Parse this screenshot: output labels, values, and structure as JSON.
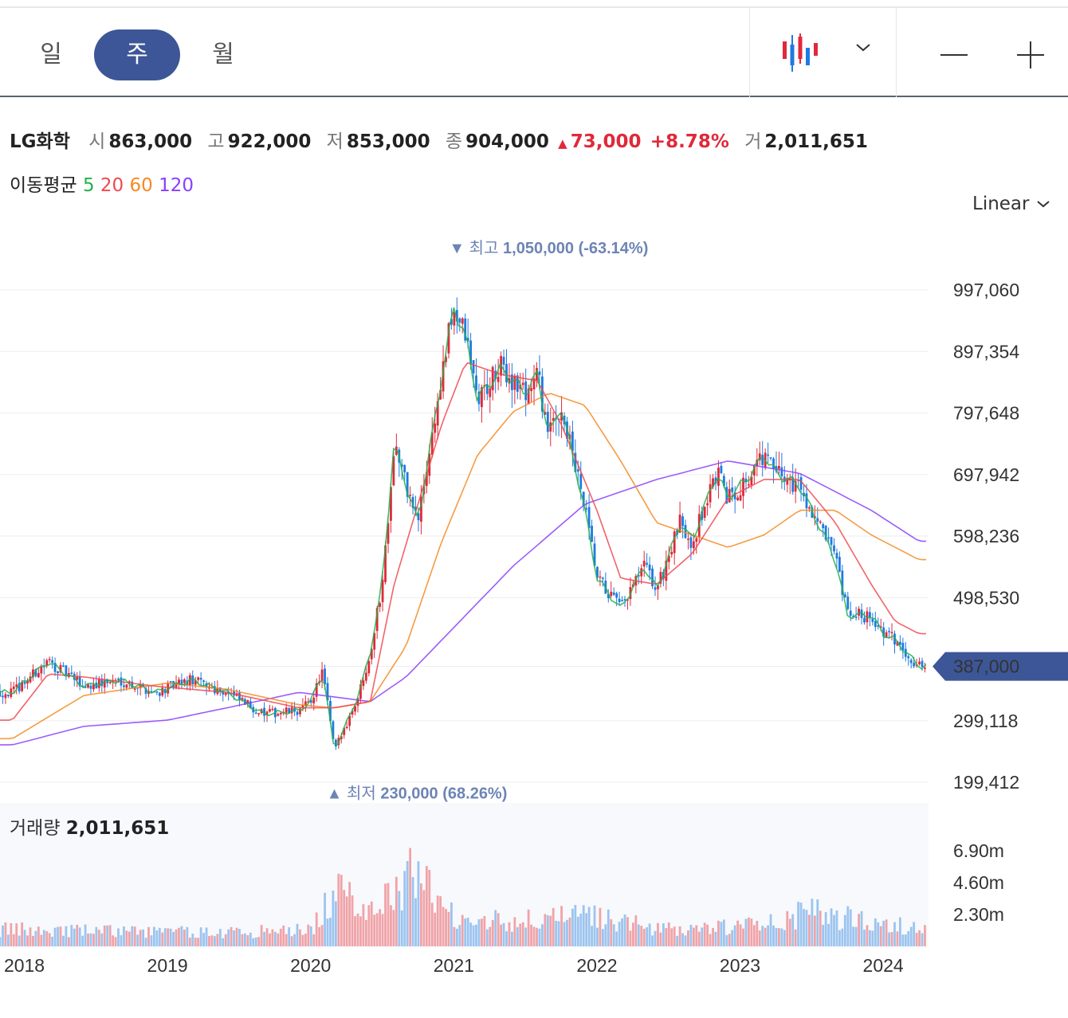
{
  "periods": [
    {
      "label": "일",
      "active": false
    },
    {
      "label": "주",
      "active": true
    },
    {
      "label": "월",
      "active": false
    }
  ],
  "toolbar": {
    "chart_type_icon": "candlestick-icon",
    "dropdown_icon": "chevron-down-icon",
    "zoom_out_icon": "minus-icon",
    "zoom_in_icon": "plus-icon"
  },
  "stock": {
    "name": "LG화학",
    "open_label": "시",
    "open": "863,000",
    "high_label": "고",
    "high": "922,000",
    "low_label": "저",
    "low": "853,000",
    "close_label": "종",
    "close": "904,000",
    "change_arrow": "▲",
    "change": "73,000",
    "change_pct": "+8.78%",
    "volume_label": "거",
    "volume": "2,011,651"
  },
  "moving_avg": {
    "label": "이동평균",
    "items": [
      {
        "label": "5",
        "color": "#22b14c"
      },
      {
        "label": "20",
        "color": "#f0484f"
      },
      {
        "label": "60",
        "color": "#f58a22"
      },
      {
        "label": "120",
        "color": "#8a3ffc"
      }
    ]
  },
  "scale": {
    "label": "Linear"
  },
  "chart_data": {
    "type": "candlestick",
    "interval": "weekly",
    "x_ticks": [
      "2018",
      "2019",
      "2020",
      "2021",
      "2022",
      "2023",
      "2024"
    ],
    "y_ticks": [
      "997,060",
      "897,354",
      "797,648",
      "697,942",
      "598,236",
      "498,530",
      "299,118",
      "199,412"
    ],
    "y_tick_values": [
      997060,
      897354,
      797648,
      697942,
      598236,
      498530,
      299118,
      199412
    ],
    "current_price_label": "387,000",
    "current_price": 387000,
    "high_annotation": {
      "arrow": "▼",
      "label": "최고",
      "value": "1,050,000 (-63.14%)",
      "price": 1050000,
      "date": "2021-01"
    },
    "low_annotation": {
      "arrow": "▲",
      "label": "최저",
      "value": "230,000 (68.26%)",
      "price": 230000,
      "date": "2020-03"
    },
    "price_anchors": [
      [
        "2017-12",
        345000
      ],
      [
        "2018-03",
        395000
      ],
      [
        "2018-06",
        355000
      ],
      [
        "2018-09",
        365000
      ],
      [
        "2018-12",
        345000
      ],
      [
        "2019-03",
        365000
      ],
      [
        "2019-06",
        345000
      ],
      [
        "2019-09",
        310000
      ],
      [
        "2019-12",
        315000
      ],
      [
        "2020-01",
        330000
      ],
      [
        "2020-02",
        380000
      ],
      [
        "2020-03",
        250000
      ],
      [
        "2020-05",
        340000
      ],
      [
        "2020-06",
        410000
      ],
      [
        "2020-07",
        520000
      ],
      [
        "2020-08",
        750000
      ],
      [
        "2020-09",
        680000
      ],
      [
        "2020-10",
        620000
      ],
      [
        "2020-11",
        740000
      ],
      [
        "2021-01",
        970000
      ],
      [
        "2021-02",
        920000
      ],
      [
        "2021-03",
        820000
      ],
      [
        "2021-05",
        870000
      ],
      [
        "2021-07",
        830000
      ],
      [
        "2021-08",
        860000
      ],
      [
        "2021-09",
        760000
      ],
      [
        "2021-10",
        810000
      ],
      [
        "2021-12",
        640000
      ],
      [
        "2022-01",
        530000
      ],
      [
        "2022-03",
        480000
      ],
      [
        "2022-05",
        550000
      ],
      [
        "2022-06",
        510000
      ],
      [
        "2022-08",
        620000
      ],
      [
        "2022-09",
        590000
      ],
      [
        "2022-11",
        700000
      ],
      [
        "2022-12",
        660000
      ],
      [
        "2023-02",
        700000
      ],
      [
        "2023-03",
        730000
      ],
      [
        "2023-04",
        700000
      ],
      [
        "2023-06",
        680000
      ],
      [
        "2023-07",
        640000
      ],
      [
        "2023-09",
        560000
      ],
      [
        "2023-10",
        470000
      ],
      [
        "2023-12",
        470000
      ],
      [
        "2024-01",
        440000
      ],
      [
        "2024-02",
        430000
      ],
      [
        "2024-04",
        387000
      ]
    ],
    "moving_averages": {
      "ma20": [
        [
          "2017-12",
          300000
        ],
        [
          "2018-03",
          375000
        ],
        [
          "2018-06",
          370000
        ],
        [
          "2018-12",
          355000
        ],
        [
          "2019-06",
          345000
        ],
        [
          "2019-12",
          320000
        ],
        [
          "2020-03",
          320000
        ],
        [
          "2020-06",
          330000
        ],
        [
          "2020-08",
          520000
        ],
        [
          "2020-10",
          650000
        ],
        [
          "2020-12",
          780000
        ],
        [
          "2021-02",
          880000
        ],
        [
          "2021-05",
          860000
        ],
        [
          "2021-08",
          850000
        ],
        [
          "2021-10",
          780000
        ],
        [
          "2022-01",
          640000
        ],
        [
          "2022-03",
          530000
        ],
        [
          "2022-06",
          520000
        ],
        [
          "2022-09",
          570000
        ],
        [
          "2022-12",
          660000
        ],
        [
          "2023-03",
          690000
        ],
        [
          "2023-06",
          690000
        ],
        [
          "2023-09",
          620000
        ],
        [
          "2023-12",
          520000
        ],
        [
          "2024-02",
          460000
        ],
        [
          "2024-04",
          440000
        ]
      ],
      "ma60": [
        [
          "2017-12",
          270000
        ],
        [
          "2018-06",
          340000
        ],
        [
          "2019-01",
          360000
        ],
        [
          "2019-06",
          350000
        ],
        [
          "2019-12",
          325000
        ],
        [
          "2020-03",
          320000
        ],
        [
          "2020-06",
          330000
        ],
        [
          "2020-09",
          420000
        ],
        [
          "2020-12",
          590000
        ],
        [
          "2021-03",
          730000
        ],
        [
          "2021-06",
          800000
        ],
        [
          "2021-09",
          830000
        ],
        [
          "2021-12",
          810000
        ],
        [
          "2022-03",
          720000
        ],
        [
          "2022-06",
          620000
        ],
        [
          "2022-09",
          600000
        ],
        [
          "2022-12",
          580000
        ],
        [
          "2023-03",
          600000
        ],
        [
          "2023-06",
          640000
        ],
        [
          "2023-09",
          640000
        ],
        [
          "2023-12",
          600000
        ],
        [
          "2024-04",
          560000
        ]
      ],
      "ma120": [
        [
          "2017-12",
          260000
        ],
        [
          "2018-06",
          290000
        ],
        [
          "2019-01",
          300000
        ],
        [
          "2019-06",
          320000
        ],
        [
          "2019-12",
          345000
        ],
        [
          "2020-06",
          330000
        ],
        [
          "2020-09",
          370000
        ],
        [
          "2020-12",
          430000
        ],
        [
          "2021-06",
          550000
        ],
        [
          "2021-12",
          650000
        ],
        [
          "2022-06",
          690000
        ],
        [
          "2022-12",
          720000
        ],
        [
          "2023-06",
          700000
        ],
        [
          "2023-12",
          640000
        ],
        [
          "2024-04",
          590000
        ]
      ]
    },
    "volume": {
      "label": "거래량",
      "value": "2,011,651",
      "y_ticks": [
        "6.90m",
        "4.60m",
        "2.30m"
      ],
      "y_tick_values": [
        6900000,
        4600000,
        2300000
      ],
      "anchors": [
        [
          "2017-12",
          1200000
        ],
        [
          "2019-06",
          1000000
        ],
        [
          "2020-01",
          1200000
        ],
        [
          "2020-03",
          3800000
        ],
        [
          "2020-06",
          3000000
        ],
        [
          "2020-09",
          4200000
        ],
        [
          "2020-10",
          6700000
        ],
        [
          "2020-12",
          2400000
        ],
        [
          "2021-06",
          1800000
        ],
        [
          "2022-01",
          2200000
        ],
        [
          "2022-06",
          1200000
        ],
        [
          "2023-01",
          1400000
        ],
        [
          "2023-07",
          2400000
        ],
        [
          "2024-04",
          1300000
        ]
      ]
    }
  }
}
